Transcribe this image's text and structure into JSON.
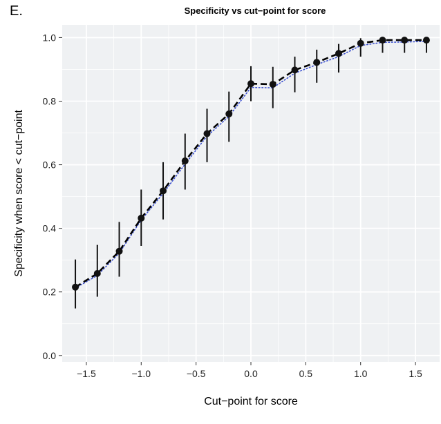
{
  "panel_label": "E.",
  "chart_data": {
    "type": "line",
    "title": "Specificity vs cut−point for score",
    "xlabel": "Cut−point for score",
    "ylabel": "Specificity when score < cut−point",
    "xlim": [
      -1.72,
      1.72
    ],
    "ylim": [
      -0.02,
      1.04
    ],
    "x_ticks": [
      -1.5,
      -1.0,
      -0.5,
      0.0,
      0.5,
      1.0,
      1.5
    ],
    "x_tick_labels": [
      "−1.5",
      "−1.0",
      "−0.5",
      "0.0",
      "0.5",
      "1.0",
      "1.5"
    ],
    "y_ticks": [
      0.0,
      0.2,
      0.4,
      0.6,
      0.8,
      1.0
    ],
    "y_tick_labels": [
      "0.0",
      "0.2",
      "0.4",
      "0.6",
      "0.8",
      "1.0"
    ],
    "grid": true,
    "background": "#eff1f3",
    "x": [
      -1.6,
      -1.4,
      -1.2,
      -1.0,
      -0.8,
      -0.6,
      -0.4,
      -0.2,
      0.0,
      0.2,
      0.4,
      0.6,
      0.8,
      1.0,
      1.2,
      1.4,
      1.6
    ],
    "series": [
      {
        "style": "dashed-black-with-points-and-errorbars",
        "color": "#000000",
        "values": [
          0.215,
          0.258,
          0.328,
          0.432,
          0.518,
          0.612,
          0.698,
          0.76,
          0.855,
          0.853,
          0.898,
          0.922,
          0.95,
          0.982,
          0.992,
          0.992,
          0.992
        ],
        "lower": [
          0.148,
          0.185,
          0.248,
          0.345,
          0.428,
          0.522,
          0.608,
          0.672,
          0.8,
          0.778,
          0.828,
          0.858,
          0.89,
          0.94,
          0.952,
          0.952,
          0.952
        ],
        "upper": [
          0.302,
          0.348,
          0.42,
          0.522,
          0.608,
          0.698,
          0.776,
          0.83,
          0.91,
          0.908,
          0.94,
          0.962,
          0.98,
          0.998,
          1.0,
          1.0,
          1.0
        ]
      },
      {
        "style": "dotted-blue",
        "color": "#3a4fd0",
        "values": [
          0.212,
          0.252,
          0.322,
          0.426,
          0.51,
          0.602,
          0.69,
          0.752,
          0.843,
          0.842,
          0.888,
          0.915,
          0.94,
          0.975,
          0.985,
          0.986,
          0.988
        ]
      }
    ]
  }
}
